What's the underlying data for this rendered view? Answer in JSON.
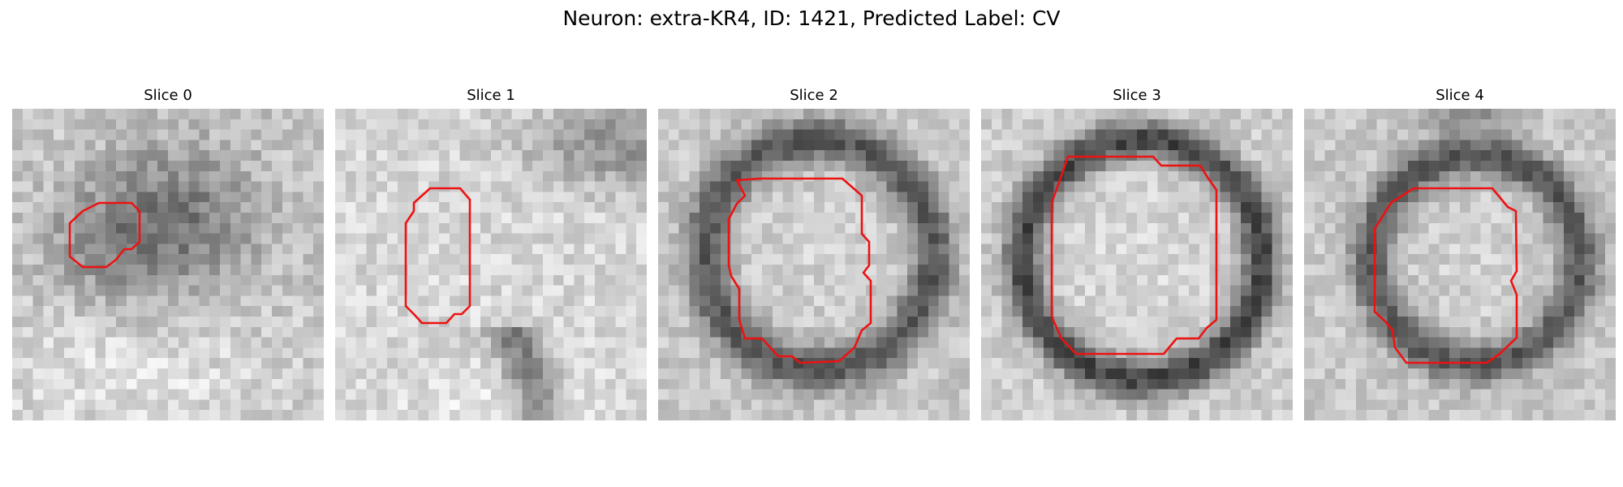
{
  "figure": {
    "title": "Neuron: extra-KR4, ID: 1421, Predicted Label: CV"
  },
  "panels": [
    {
      "title": "Slice 0"
    },
    {
      "title": "Slice 1"
    },
    {
      "title": "Slice 2"
    },
    {
      "title": "Slice 3"
    },
    {
      "title": "Slice 4"
    }
  ],
  "colors": {
    "outline": "#ee1111",
    "background": "#ffffff"
  }
}
